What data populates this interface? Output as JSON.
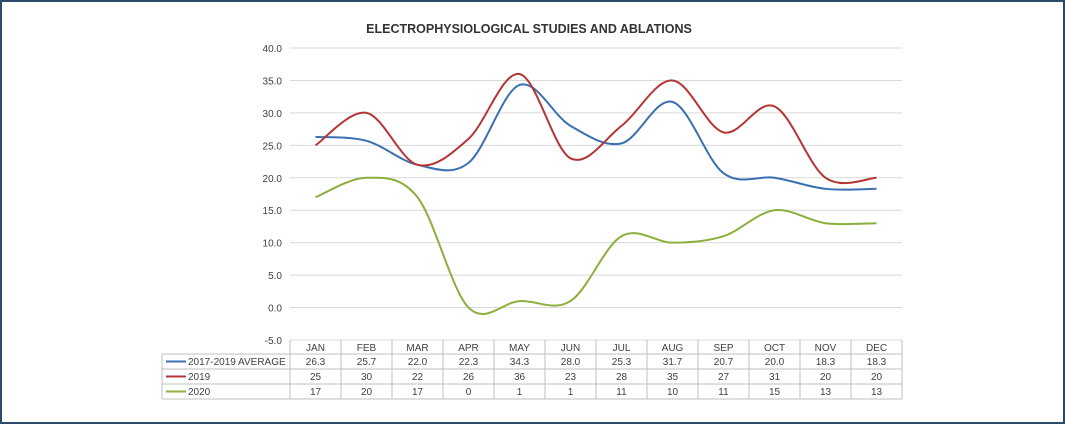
{
  "chart_data": {
    "type": "line",
    "title": "ELECTROPHYSIOLOGICAL STUDIES AND ABLATIONS",
    "categories": [
      "JAN",
      "FEB",
      "MAR",
      "APR",
      "MAY",
      "JUN",
      "JUL",
      "AUG",
      "SEP",
      "OCT",
      "NOV",
      "DEC"
    ],
    "y_ticks": [
      "40.0",
      "35.0",
      "30.0",
      "25.0",
      "20.0",
      "15.0",
      "10.0",
      "5.0",
      "0.0",
      "-5.0"
    ],
    "ylim": [
      -5,
      40
    ],
    "grid": true,
    "series": [
      {
        "name": "2017-2019 AVERAGE",
        "color": "#3a6fb0",
        "values": [
          26.3,
          25.7,
          22.0,
          22.3,
          34.3,
          28.0,
          25.3,
          31.7,
          20.7,
          20.0,
          18.3,
          18.3
        ],
        "labels": [
          "26.3",
          "25.7",
          "22.0",
          "22.3",
          "34.3",
          "28.0",
          "25.3",
          "31.7",
          "20.7",
          "20.0",
          "18.3",
          "18.3"
        ]
      },
      {
        "name": "2019",
        "color": "#b63434",
        "values": [
          25,
          30,
          22,
          26,
          36,
          23,
          28,
          35,
          27,
          31,
          20,
          20
        ],
        "labels": [
          "25",
          "30",
          "22",
          "26",
          "36",
          "23",
          "28",
          "35",
          "27",
          "31",
          "20",
          "20"
        ]
      },
      {
        "name": "2020",
        "color": "#8aaf3c",
        "values": [
          17,
          20,
          17,
          0,
          1,
          1,
          11,
          10,
          11,
          15,
          13,
          13
        ],
        "labels": [
          "17",
          "20",
          "17",
          "0",
          "1",
          "1",
          "11",
          "10",
          "11",
          "15",
          "13",
          "13"
        ]
      }
    ]
  }
}
